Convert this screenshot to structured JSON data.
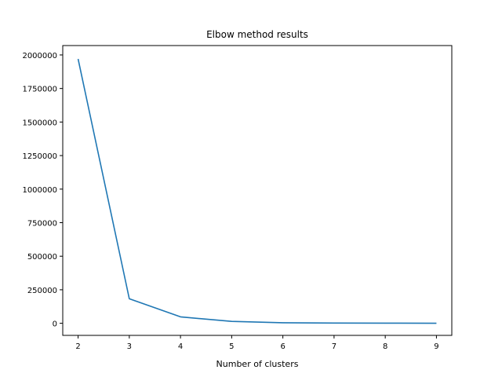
{
  "chart_data": {
    "type": "line",
    "title": "Elbow method results",
    "xlabel": "Number of clusters",
    "ylabel": "",
    "xlim": [
      1.7,
      9.3
    ],
    "ylim": [
      -90000,
      2070000
    ],
    "xticks": [
      2,
      3,
      4,
      5,
      6,
      7,
      8,
      9
    ],
    "xtick_labels": [
      "2",
      "3",
      "4",
      "5",
      "6",
      "7",
      "8",
      "9"
    ],
    "yticks": [
      0,
      250000,
      500000,
      750000,
      1000000,
      1250000,
      1500000,
      1750000,
      2000000
    ],
    "ytick_labels": [
      "0",
      "250000",
      "500000",
      "750000",
      "1000000",
      "1250000",
      "1500000",
      "1750000",
      "2000000"
    ],
    "grid": false,
    "series": [
      {
        "color": "#1f77b4",
        "x": [
          2,
          3,
          4,
          5,
          6,
          7,
          8,
          9
        ],
        "y": [
          1970000,
          183000,
          48000,
          14000,
          4000,
          2000,
          1000,
          500
        ]
      }
    ]
  }
}
